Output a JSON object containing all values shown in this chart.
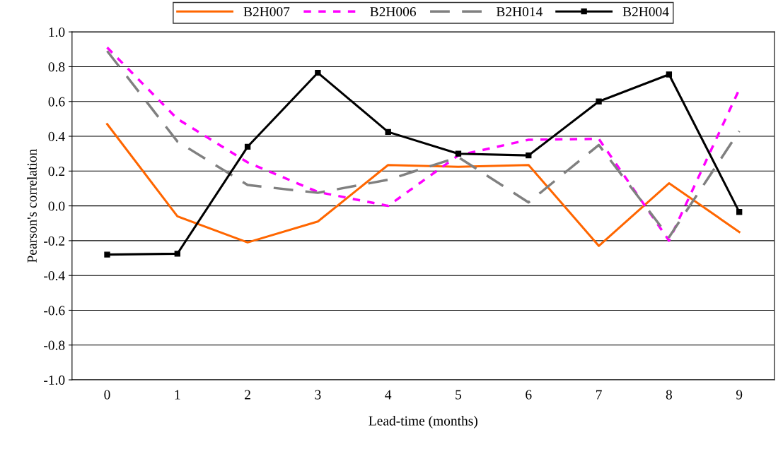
{
  "chart_data": {
    "type": "line",
    "xlabel": "Lead-time (months)",
    "ylabel": "Pearson's correlation",
    "categories": [
      "0",
      "1",
      "2",
      "3",
      "4",
      "5",
      "6",
      "7",
      "8",
      "9"
    ],
    "series": [
      {
        "name": "B2H007",
        "color": "#ff6600",
        "line_style": "solid",
        "marker": "none",
        "values": [
          0.47,
          -0.06,
          -0.21,
          -0.09,
          0.235,
          0.225,
          0.235,
          -0.23,
          0.13,
          -0.15
        ]
      },
      {
        "name": "B2H006",
        "color": "#ff00ff",
        "line_style": "dotted",
        "marker": "none",
        "values": [
          0.91,
          0.5,
          0.25,
          0.08,
          0.0,
          0.29,
          0.38,
          0.385,
          -0.2,
          0.67
        ]
      },
      {
        "name": "B2H014",
        "color": "#808080",
        "line_style": "dashed",
        "marker": "none",
        "values": [
          0.89,
          0.37,
          0.12,
          0.075,
          0.15,
          0.28,
          0.02,
          0.35,
          -0.18,
          0.43
        ]
      },
      {
        "name": "B2H004",
        "color": "#000000",
        "line_style": "solid",
        "marker": "square",
        "values": [
          -0.28,
          -0.275,
          0.34,
          0.765,
          0.425,
          0.3,
          0.29,
          0.6,
          0.755,
          -0.035
        ]
      }
    ],
    "ylim": [
      -1.0,
      1.0
    ],
    "yticks": [
      {
        "value": -1.0,
        "label": "-1.0"
      },
      {
        "value": -0.8,
        "label": "-0.8"
      },
      {
        "value": -0.6,
        "label": "-0.6"
      },
      {
        "value": -0.4,
        "label": "-0.4"
      },
      {
        "value": -0.2,
        "label": "-0.2"
      },
      {
        "value": 0.0,
        "label": "0.0"
      },
      {
        "value": 0.2,
        "label": "0.2"
      },
      {
        "value": 0.4,
        "label": "0.4"
      },
      {
        "value": 0.6,
        "label": "0.6"
      },
      {
        "value": 0.8,
        "label": "0.8"
      },
      {
        "value": 1.0,
        "label": "1.0"
      }
    ],
    "grid": "y",
    "legend": "top"
  }
}
